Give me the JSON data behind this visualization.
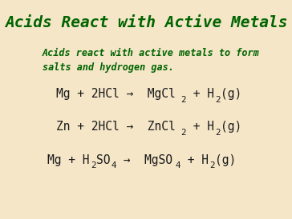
{
  "title": "Acids React with Active Metals",
  "title_color": "#006400",
  "subtitle": "Acids react with active metals to form\nsalts and hydrogen gas.",
  "subtitle_color": "#006400",
  "background_color": "#f5e6c8",
  "border_color": "#c8a96e",
  "equations": [
    {
      "text": "Mg + 2HCl →  MgCl",
      "sub1": "2",
      "mid": " + H",
      "sub2": "2",
      "end": "(g)"
    },
    {
      "text": "Zn + 2HCl →  ZnCl",
      "sub1": "2",
      "mid": " + H",
      "sub2": "2",
      "end": "(g)"
    },
    {
      "text": "Mg + H",
      "sub3": "2",
      "mid2": "SO",
      "sub4": "4",
      "arrow": " →  MgSO",
      "sub5": "4",
      "mid3": " + H",
      "sub6": "2",
      "end": "(g)"
    }
  ],
  "eq_color": "#1a1a1a",
  "figsize": [
    3.64,
    2.74
  ],
  "dpi": 100
}
